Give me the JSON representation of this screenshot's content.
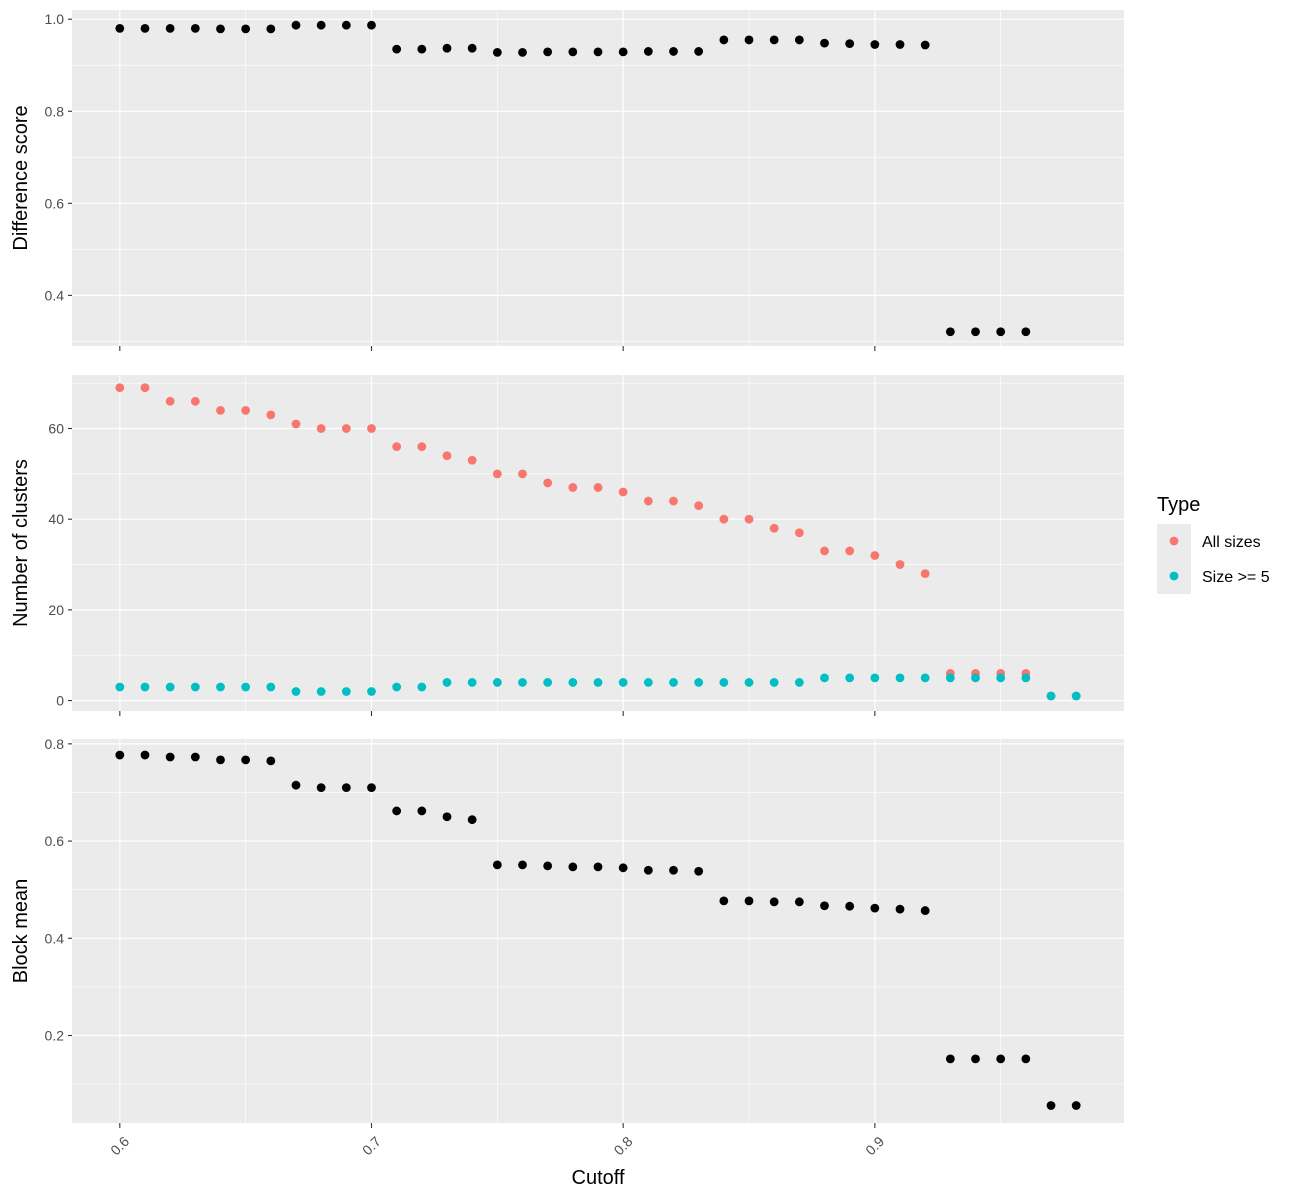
{
  "chart_data": {
    "type": "scatter",
    "xlabel": "Cutoff",
    "x_ticks": [
      0.6,
      0.7,
      0.8,
      0.9
    ],
    "xlim": [
      0.581,
      0.999
    ],
    "grid": true,
    "panels": [
      {
        "ylabel": "Difference score",
        "ylim": [
          0.29,
          1.02
        ],
        "y_ticks": [
          0.4,
          0.6,
          0.8,
          1.0
        ],
        "y_tick_labels": [
          "0.4",
          "0.6",
          "0.8",
          "1.0"
        ],
        "series": [
          {
            "color": "#000000",
            "points": [
              [
                0.6,
                0.98
              ],
              [
                0.61,
                0.98
              ],
              [
                0.62,
                0.98
              ],
              [
                0.63,
                0.98
              ],
              [
                0.64,
                0.979
              ],
              [
                0.65,
                0.979
              ],
              [
                0.66,
                0.979
              ],
              [
                0.67,
                0.987
              ],
              [
                0.68,
                0.987
              ],
              [
                0.69,
                0.987
              ],
              [
                0.7,
                0.987
              ],
              [
                0.71,
                0.935
              ],
              [
                0.72,
                0.935
              ],
              [
                0.73,
                0.937
              ],
              [
                0.74,
                0.937
              ],
              [
                0.75,
                0.928
              ],
              [
                0.76,
                0.928
              ],
              [
                0.77,
                0.929
              ],
              [
                0.78,
                0.929
              ],
              [
                0.79,
                0.929
              ],
              [
                0.8,
                0.929
              ],
              [
                0.81,
                0.93
              ],
              [
                0.82,
                0.93
              ],
              [
                0.83,
                0.93
              ],
              [
                0.84,
                0.955
              ],
              [
                0.85,
                0.955
              ],
              [
                0.86,
                0.955
              ],
              [
                0.87,
                0.955
              ],
              [
                0.88,
                0.948
              ],
              [
                0.89,
                0.947
              ],
              [
                0.9,
                0.945
              ],
              [
                0.91,
                0.945
              ],
              [
                0.92,
                0.944
              ],
              [
                0.93,
                0.321
              ],
              [
                0.94,
                0.321
              ],
              [
                0.95,
                0.321
              ],
              [
                0.96,
                0.321
              ]
            ]
          }
        ]
      },
      {
        "ylabel": "Number of clusters",
        "ylim": [
          -2.3,
          71.8
        ],
        "y_ticks": [
          0,
          20,
          40,
          60
        ],
        "y_tick_labels": [
          "0",
          "20",
          "40",
          "60"
        ],
        "series": [
          {
            "name": "All sizes",
            "color": "#F8766D",
            "points": [
              [
                0.6,
                69
              ],
              [
                0.61,
                69
              ],
              [
                0.62,
                66
              ],
              [
                0.63,
                66
              ],
              [
                0.64,
                64
              ],
              [
                0.65,
                64
              ],
              [
                0.66,
                63
              ],
              [
                0.67,
                61
              ],
              [
                0.68,
                60
              ],
              [
                0.69,
                60
              ],
              [
                0.7,
                60
              ],
              [
                0.71,
                56
              ],
              [
                0.72,
                56
              ],
              [
                0.73,
                54
              ],
              [
                0.74,
                53
              ],
              [
                0.75,
                50
              ],
              [
                0.76,
                50
              ],
              [
                0.77,
                48
              ],
              [
                0.78,
                47
              ],
              [
                0.79,
                47
              ],
              [
                0.8,
                46
              ],
              [
                0.81,
                44
              ],
              [
                0.82,
                44
              ],
              [
                0.83,
                43
              ],
              [
                0.84,
                40
              ],
              [
                0.85,
                40
              ],
              [
                0.86,
                38
              ],
              [
                0.87,
                37
              ],
              [
                0.88,
                33
              ],
              [
                0.89,
                33
              ],
              [
                0.9,
                32
              ],
              [
                0.91,
                30
              ],
              [
                0.92,
                28
              ],
              [
                0.93,
                6
              ],
              [
                0.94,
                6
              ],
              [
                0.95,
                6
              ],
              [
                0.96,
                6
              ],
              [
                0.97,
                1
              ],
              [
                0.98,
                1
              ]
            ]
          },
          {
            "name": "Size >= 5",
            "color": "#00BFC4",
            "points": [
              [
                0.6,
                3
              ],
              [
                0.61,
                3
              ],
              [
                0.62,
                3
              ],
              [
                0.63,
                3
              ],
              [
                0.64,
                3
              ],
              [
                0.65,
                3
              ],
              [
                0.66,
                3
              ],
              [
                0.67,
                2
              ],
              [
                0.68,
                2
              ],
              [
                0.69,
                2
              ],
              [
                0.7,
                2
              ],
              [
                0.71,
                3
              ],
              [
                0.72,
                3
              ],
              [
                0.73,
                4
              ],
              [
                0.74,
                4
              ],
              [
                0.75,
                4
              ],
              [
                0.76,
                4
              ],
              [
                0.77,
                4
              ],
              [
                0.78,
                4
              ],
              [
                0.79,
                4
              ],
              [
                0.8,
                4
              ],
              [
                0.81,
                4
              ],
              [
                0.82,
                4
              ],
              [
                0.83,
                4
              ],
              [
                0.84,
                4
              ],
              [
                0.85,
                4
              ],
              [
                0.86,
                4
              ],
              [
                0.87,
                4
              ],
              [
                0.88,
                5
              ],
              [
                0.89,
                5
              ],
              [
                0.9,
                5
              ],
              [
                0.91,
                5
              ],
              [
                0.92,
                5
              ],
              [
                0.93,
                5
              ],
              [
                0.94,
                5
              ],
              [
                0.95,
                5
              ],
              [
                0.96,
                5
              ],
              [
                0.97,
                1
              ],
              [
                0.98,
                1
              ]
            ]
          }
        ]
      },
      {
        "ylabel": "Block mean",
        "ylim": [
          0.02,
          0.81
        ],
        "y_ticks": [
          0.2,
          0.4,
          0.6,
          0.8
        ],
        "y_tick_labels": [
          "0.2",
          "0.4",
          "0.6",
          "0.8"
        ],
        "series": [
          {
            "color": "#000000",
            "points": [
              [
                0.6,
                0.777
              ],
              [
                0.61,
                0.777
              ],
              [
                0.62,
                0.773
              ],
              [
                0.63,
                0.773
              ],
              [
                0.64,
                0.767
              ],
              [
                0.65,
                0.767
              ],
              [
                0.66,
                0.765
              ],
              [
                0.67,
                0.715
              ],
              [
                0.68,
                0.71
              ],
              [
                0.69,
                0.71
              ],
              [
                0.7,
                0.71
              ],
              [
                0.71,
                0.662
              ],
              [
                0.72,
                0.662
              ],
              [
                0.73,
                0.65
              ],
              [
                0.74,
                0.644
              ],
              [
                0.75,
                0.551
              ],
              [
                0.76,
                0.551
              ],
              [
                0.77,
                0.549
              ],
              [
                0.78,
                0.547
              ],
              [
                0.79,
                0.547
              ],
              [
                0.8,
                0.545
              ],
              [
                0.81,
                0.54
              ],
              [
                0.82,
                0.54
              ],
              [
                0.83,
                0.538
              ],
              [
                0.84,
                0.477
              ],
              [
                0.85,
                0.477
              ],
              [
                0.86,
                0.475
              ],
              [
                0.87,
                0.475
              ],
              [
                0.88,
                0.467
              ],
              [
                0.89,
                0.466
              ],
              [
                0.9,
                0.462
              ],
              [
                0.91,
                0.46
              ],
              [
                0.92,
                0.457
              ],
              [
                0.93,
                0.152
              ],
              [
                0.94,
                0.152
              ],
              [
                0.95,
                0.152
              ],
              [
                0.96,
                0.152
              ],
              [
                0.97,
                0.056
              ],
              [
                0.98,
                0.056
              ]
            ]
          }
        ]
      }
    ],
    "legend": {
      "title": "Type",
      "position": "right",
      "items": [
        {
          "label": "All sizes",
          "color": "#F8766D"
        },
        {
          "label": "Size >= 5",
          "color": "#00BFC4"
        }
      ]
    }
  }
}
